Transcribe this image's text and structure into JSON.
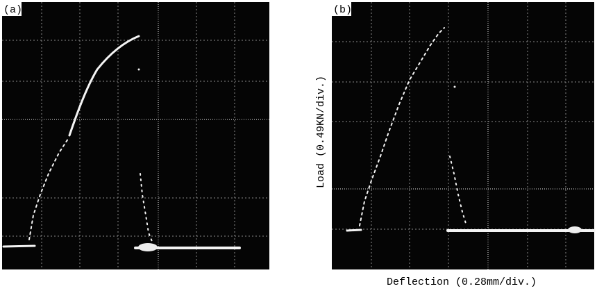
{
  "panels": [
    {
      "label": "(a)"
    },
    {
      "label": "(b)"
    }
  ],
  "y_axis_label": "Load (0.49KN/div.)",
  "x_axis_label": "Deflection (0.28mm/div.)"
}
